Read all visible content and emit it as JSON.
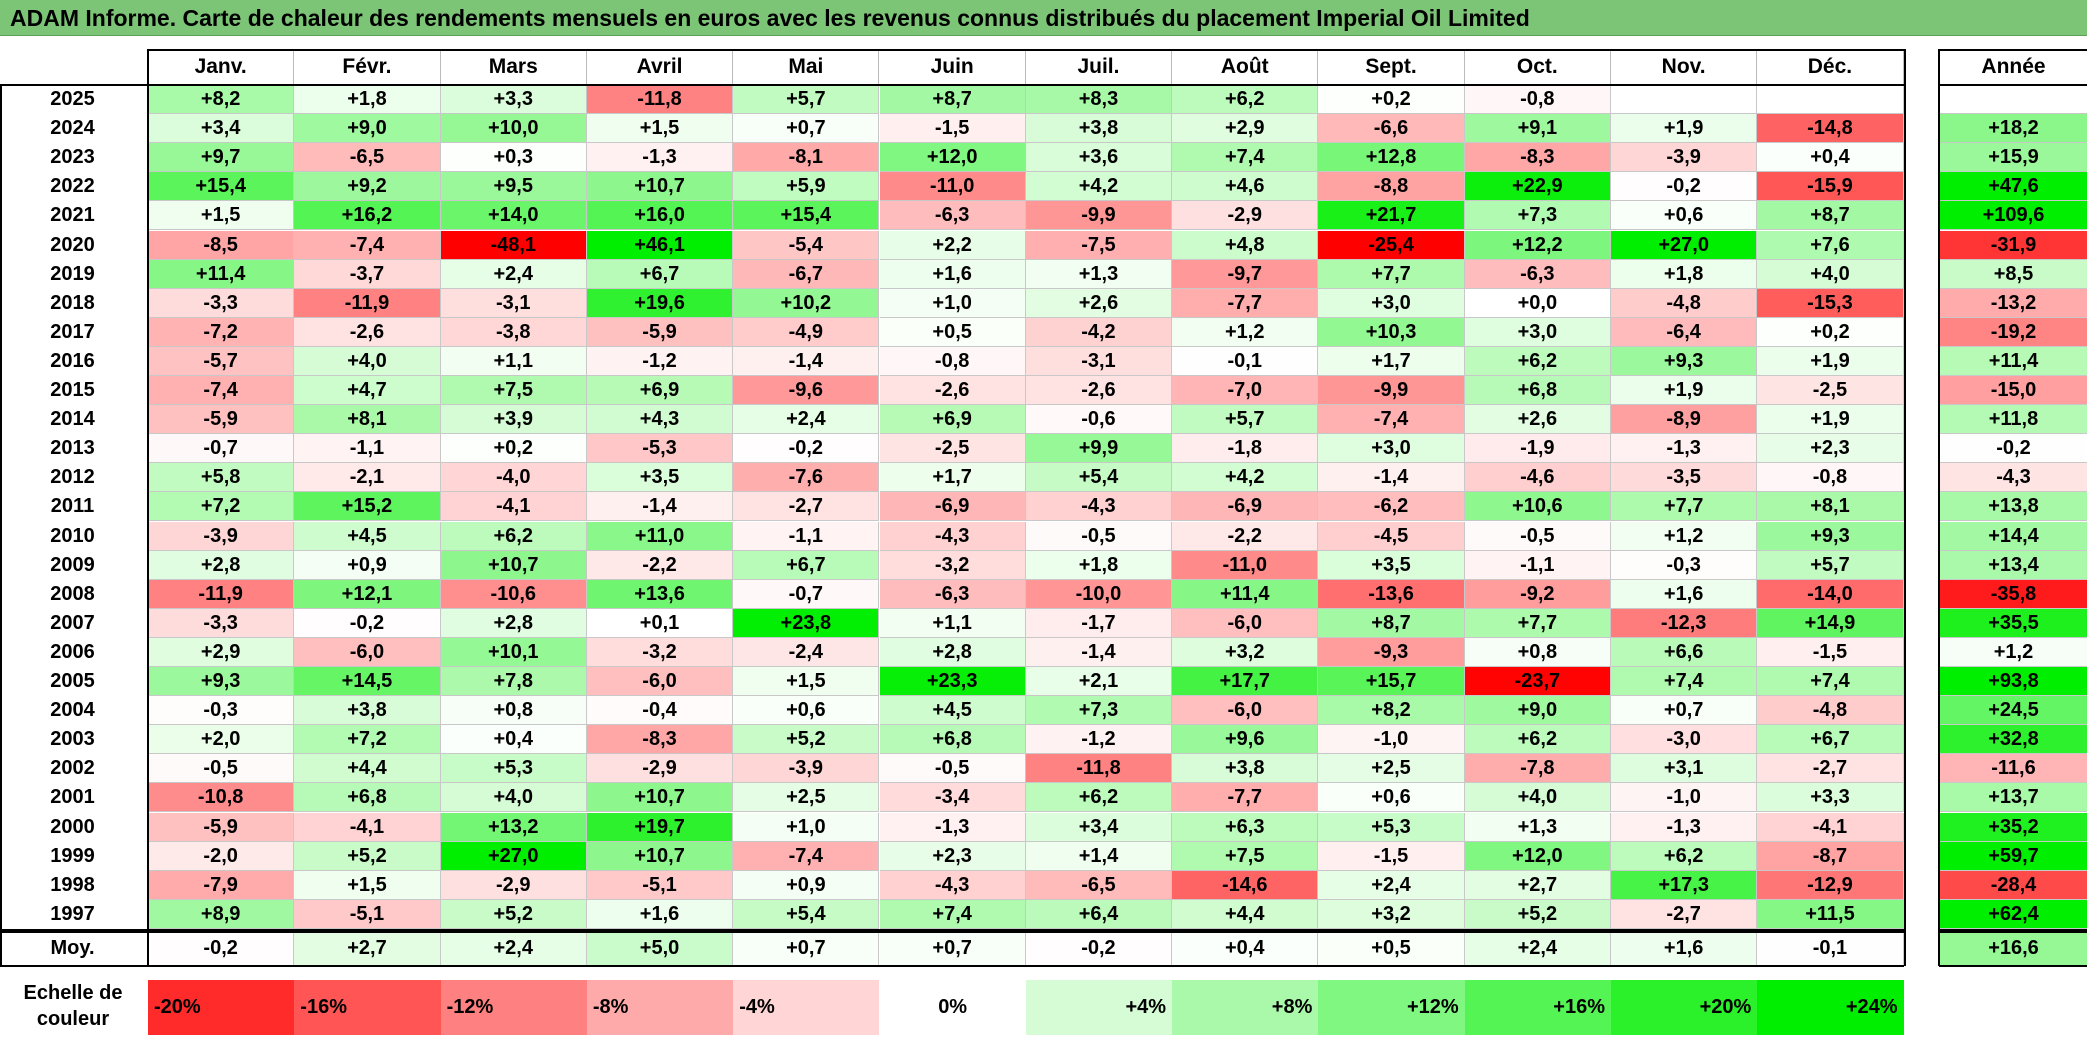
{
  "title": "ADAM Informe. Carte de chaleur des rendements mensuels en euros avec les revenus connus distribués du placement Imperial Oil Limited",
  "chart_data": {
    "type": "heatmap",
    "title": "ADAM Informe. Carte de chaleur des rendements mensuels en euros avec les revenus connus distribués du placement Imperial Oil Limited",
    "months": [
      "Janv.",
      "Févr.",
      "Mars",
      "Avril",
      "Mai",
      "Juin",
      "Juil.",
      "Août",
      "Sept.",
      "Oct.",
      "Nov.",
      "Déc."
    ],
    "year_header": "Année",
    "rows": [
      {
        "year": "2025",
        "values": [
          "+8,2",
          "+1,8",
          "+3,3",
          "-11,8",
          "+5,7",
          "+8,7",
          "+8,3",
          "+6,2",
          "+0,2",
          "-0,8",
          "",
          ""
        ],
        "annual": ""
      },
      {
        "year": "2024",
        "values": [
          "+3,4",
          "+9,0",
          "+10,0",
          "+1,5",
          "+0,7",
          "-1,5",
          "+3,8",
          "+2,9",
          "-6,6",
          "+9,1",
          "+1,9",
          "-14,8"
        ],
        "annual": "+18,2"
      },
      {
        "year": "2023",
        "values": [
          "+9,7",
          "-6,5",
          "+0,3",
          "-1,3",
          "-8,1",
          "+12,0",
          "+3,6",
          "+7,4",
          "+12,8",
          "-8,3",
          "-3,9",
          "+0,4"
        ],
        "annual": "+15,9"
      },
      {
        "year": "2022",
        "values": [
          "+15,4",
          "+9,2",
          "+9,5",
          "+10,7",
          "+5,9",
          "-11,0",
          "+4,2",
          "+4,6",
          "-8,8",
          "+22,9",
          "-0,2",
          "-15,9"
        ],
        "annual": "+47,6"
      },
      {
        "year": "2021",
        "values": [
          "+1,5",
          "+16,2",
          "+14,0",
          "+16,0",
          "+15,4",
          "-6,3",
          "-9,9",
          "-2,9",
          "+21,7",
          "+7,3",
          "+0,6",
          "+8,7"
        ],
        "annual": "+109,6"
      },
      {
        "year": "2020",
        "values": [
          "-8,5",
          "-7,4",
          "-48,1",
          "+46,1",
          "-5,4",
          "+2,2",
          "-7,5",
          "+4,8",
          "-25,4",
          "+12,2",
          "+27,0",
          "+7,6"
        ],
        "annual": "-31,9"
      },
      {
        "year": "2019",
        "values": [
          "+11,4",
          "-3,7",
          "+2,4",
          "+6,7",
          "-6,7",
          "+1,6",
          "+1,3",
          "-9,7",
          "+7,7",
          "-6,3",
          "+1,8",
          "+4,0"
        ],
        "annual": "+8,5"
      },
      {
        "year": "2018",
        "values": [
          "-3,3",
          "-11,9",
          "-3,1",
          "+19,6",
          "+10,2",
          "+1,0",
          "+2,6",
          "-7,7",
          "+3,0",
          "+0,0",
          "-4,8",
          "-15,3"
        ],
        "annual": "-13,2"
      },
      {
        "year": "2017",
        "values": [
          "-7,2",
          "-2,6",
          "-3,8",
          "-5,9",
          "-4,9",
          "+0,5",
          "-4,2",
          "+1,2",
          "+10,3",
          "+3,0",
          "-6,4",
          "+0,2"
        ],
        "annual": "-19,2"
      },
      {
        "year": "2016",
        "values": [
          "-5,7",
          "+4,0",
          "+1,1",
          "-1,2",
          "-1,4",
          "-0,8",
          "-3,1",
          "-0,1",
          "+1,7",
          "+6,2",
          "+9,3",
          "+1,9"
        ],
        "annual": "+11,4"
      },
      {
        "year": "2015",
        "values": [
          "-7,4",
          "+4,7",
          "+7,5",
          "+6,9",
          "-9,6",
          "-2,6",
          "-2,6",
          "-7,0",
          "-9,9",
          "+6,8",
          "+1,9",
          "-2,5"
        ],
        "annual": "-15,0"
      },
      {
        "year": "2014",
        "values": [
          "-5,9",
          "+8,1",
          "+3,9",
          "+4,3",
          "+2,4",
          "+6,9",
          "-0,6",
          "+5,7",
          "-7,4",
          "+2,6",
          "-8,9",
          "+1,9"
        ],
        "annual": "+11,8"
      },
      {
        "year": "2013",
        "values": [
          "-0,7",
          "-1,1",
          "+0,2",
          "-5,3",
          "-0,2",
          "-2,5",
          "+9,9",
          "-1,8",
          "+3,0",
          "-1,9",
          "-1,3",
          "+2,3"
        ],
        "annual": "-0,2"
      },
      {
        "year": "2012",
        "values": [
          "+5,8",
          "-2,1",
          "-4,0",
          "+3,5",
          "-7,6",
          "+1,7",
          "+5,4",
          "+4,2",
          "-1,4",
          "-4,6",
          "-3,5",
          "-0,8"
        ],
        "annual": "-4,3"
      },
      {
        "year": "2011",
        "values": [
          "+7,2",
          "+15,2",
          "-4,1",
          "-1,4",
          "-2,7",
          "-6,9",
          "-4,3",
          "-6,9",
          "-6,2",
          "+10,6",
          "+7,7",
          "+8,1"
        ],
        "annual": "+13,8"
      },
      {
        "year": "2010",
        "values": [
          "-3,9",
          "+4,5",
          "+6,2",
          "+11,0",
          "-1,1",
          "-4,3",
          "-0,5",
          "-2,2",
          "-4,5",
          "-0,5",
          "+1,2",
          "+9,3"
        ],
        "annual": "+14,4"
      },
      {
        "year": "2009",
        "values": [
          "+2,8",
          "+0,9",
          "+10,7",
          "-2,2",
          "+6,7",
          "-3,2",
          "+1,8",
          "-11,0",
          "+3,5",
          "-1,1",
          "-0,3",
          "+5,7"
        ],
        "annual": "+13,4"
      },
      {
        "year": "2008",
        "values": [
          "-11,9",
          "+12,1",
          "-10,6",
          "+13,6",
          "-0,7",
          "-6,3",
          "-10,0",
          "+11,4",
          "-13,6",
          "-9,2",
          "+1,6",
          "-14,0"
        ],
        "annual": "-35,8"
      },
      {
        "year": "2007",
        "values": [
          "-3,3",
          "-0,2",
          "+2,8",
          "+0,1",
          "+23,8",
          "+1,1",
          "-1,7",
          "-6,0",
          "+8,7",
          "+7,7",
          "-12,3",
          "+14,9"
        ],
        "annual": "+35,5"
      },
      {
        "year": "2006",
        "values": [
          "+2,9",
          "-6,0",
          "+10,1",
          "-3,2",
          "-2,4",
          "+2,8",
          "-1,4",
          "+3,2",
          "-9,3",
          "+0,8",
          "+6,6",
          "-1,5"
        ],
        "annual": "+1,2"
      },
      {
        "year": "2005",
        "values": [
          "+9,3",
          "+14,5",
          "+7,8",
          "-6,0",
          "+1,5",
          "+23,3",
          "+2,1",
          "+17,7",
          "+15,7",
          "-23,7",
          "+7,4",
          "+7,4"
        ],
        "annual": "+93,8"
      },
      {
        "year": "2004",
        "values": [
          "-0,3",
          "+3,8",
          "+0,8",
          "-0,4",
          "+0,6",
          "+4,5",
          "+7,3",
          "-6,0",
          "+8,2",
          "+9,0",
          "+0,7",
          "-4,8"
        ],
        "annual": "+24,5"
      },
      {
        "year": "2003",
        "values": [
          "+2,0",
          "+7,2",
          "+0,4",
          "-8,3",
          "+5,2",
          "+6,8",
          "-1,2",
          "+9,6",
          "-1,0",
          "+6,2",
          "-3,0",
          "+6,7"
        ],
        "annual": "+32,8"
      },
      {
        "year": "2002",
        "values": [
          "-0,5",
          "+4,4",
          "+5,3",
          "-2,9",
          "-3,9",
          "-0,5",
          "-11,8",
          "+3,8",
          "+2,5",
          "-7,8",
          "+3,1",
          "-2,7"
        ],
        "annual": "-11,6"
      },
      {
        "year": "2001",
        "values": [
          "-10,8",
          "+6,8",
          "+4,0",
          "+10,7",
          "+2,5",
          "-3,4",
          "+6,2",
          "-7,7",
          "+0,6",
          "+4,0",
          "-1,0",
          "+3,3"
        ],
        "annual": "+13,7"
      },
      {
        "year": "2000",
        "values": [
          "-5,9",
          "-4,1",
          "+13,2",
          "+19,7",
          "+1,0",
          "-1,3",
          "+3,4",
          "+6,3",
          "+5,3",
          "+1,3",
          "-1,3",
          "-4,1"
        ],
        "annual": "+35,2"
      },
      {
        "year": "1999",
        "values": [
          "-2,0",
          "+5,2",
          "+27,0",
          "+10,7",
          "-7,4",
          "+2,3",
          "+1,4",
          "+7,5",
          "-1,5",
          "+12,0",
          "+6,2",
          "-8,7"
        ],
        "annual": "+59,7"
      },
      {
        "year": "1998",
        "values": [
          "-7,9",
          "+1,5",
          "-2,9",
          "-5,1",
          "+0,9",
          "-4,3",
          "-6,5",
          "-14,6",
          "+2,4",
          "+2,7",
          "+17,3",
          "-12,9"
        ],
        "annual": "-28,4"
      },
      {
        "year": "1997",
        "values": [
          "+8,9",
          "-5,1",
          "+5,2",
          "+1,6",
          "+5,4",
          "+7,4",
          "+6,4",
          "+4,4",
          "+3,2",
          "+5,2",
          "-2,7",
          "+11,5"
        ],
        "annual": "+62,4"
      }
    ],
    "average": {
      "label": "Moy.",
      "values": [
        "-0,2",
        "+2,7",
        "+2,4",
        "+5,0",
        "+0,7",
        "+0,7",
        "-0,2",
        "+0,4",
        "+0,5",
        "+2,4",
        "+1,6",
        "-0,1"
      ],
      "annual": "+16,6"
    },
    "legend": {
      "label": "Echelle de couleur",
      "items": [
        "-20%",
        "-16%",
        "-12%",
        "-8%",
        "-4%",
        "0%",
        "+4%",
        "+8%",
        "+12%",
        "+16%",
        "+20%",
        "+24%"
      ],
      "values": [
        -20,
        -16,
        -12,
        -8,
        -4,
        0,
        4,
        8,
        12,
        16,
        20,
        24
      ]
    },
    "colors": {
      "negative_max": "#ff0000",
      "neutral": "#ffffff",
      "positive_max": "#00ee00",
      "title_bar": "#7cc576"
    }
  }
}
